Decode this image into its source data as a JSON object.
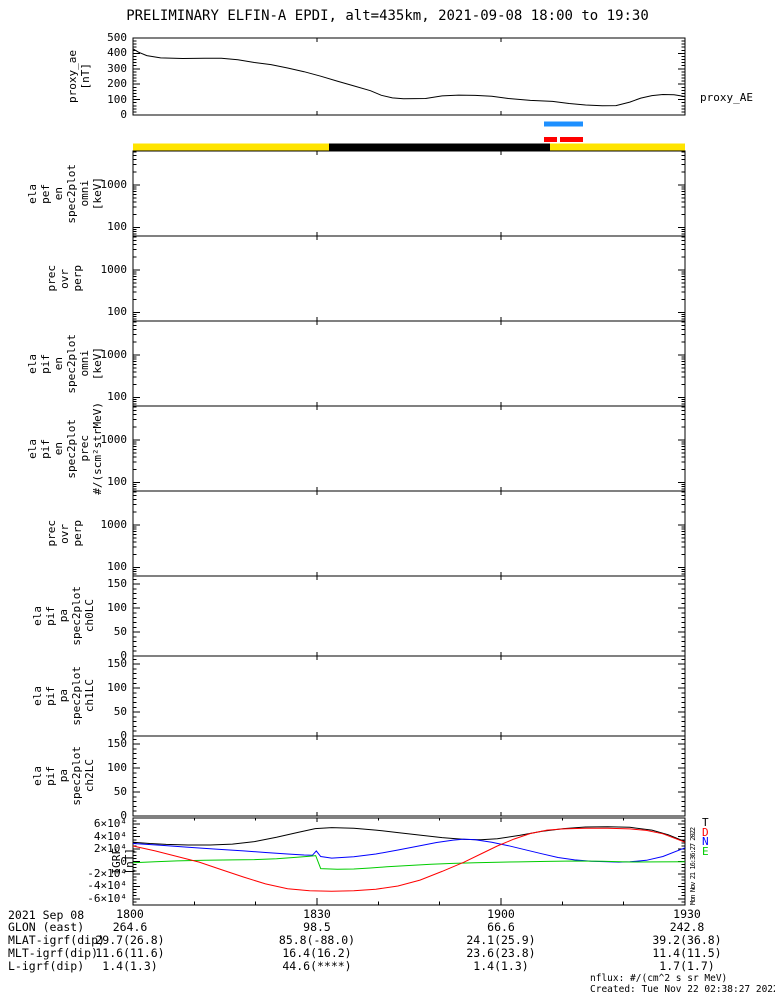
{
  "title": "PRELIMINARY ELFIN-A EPDI, alt=435km, 2021-09-08 18:00 to 19:30",
  "labels": {
    "proxy_ae_right": "proxy_AE",
    "side_timestamp": "Mon Nov 21 16:36:27 2022"
  },
  "footnotes": {
    "nflux": "nflux: #/(cm^2 s sr MeV)",
    "created": "Created: Tue Nov 22 02:38:27 2022"
  },
  "bottom_axis": {
    "date_label": "2021 Sep 08",
    "time_ticks": [
      "1800",
      "1830",
      "1900",
      "1930"
    ],
    "rows": [
      {
        "label": "GLON (east)",
        "values": [
          "264.6",
          "98.5",
          "66.6",
          "242.8"
        ]
      },
      {
        "label": "MLAT-igrf(dip)",
        "values": [
          "29.7(26.8)",
          "85.8(-88.0)",
          "24.1(25.9)",
          "39.2(36.8)"
        ]
      },
      {
        "label": "MLT-igrf(dip)",
        "values": [
          "11.6(11.6)",
          "16.4(16.2)",
          "23.6(23.8)",
          "11.4(11.5)"
        ]
      },
      {
        "label": "L-igrf(dip)",
        "values": [
          "1.4(1.3)",
          "44.6(****)",
          "1.4(1.3)",
          "1.7(1.7)"
        ]
      }
    ]
  },
  "chart_data": [
    {
      "panel": "proxy-ae",
      "type": "line",
      "ylabel_lines": [
        "proxy_ae",
        "[nT]"
      ],
      "yscale": "linear",
      "ylim": [
        0,
        500
      ],
      "yticks": [
        0,
        100,
        200,
        300,
        400,
        500
      ],
      "minor_step": 20,
      "xlim_minutes": [
        0,
        90
      ],
      "series": [
        {
          "name": "proxy_AE",
          "color": "#000000",
          "points": [
            [
              0,
              430
            ],
            [
              0.01,
              408
            ],
            [
              0.025,
              386
            ],
            [
              0.05,
              371
            ],
            [
              0.09,
              367
            ],
            [
              0.13,
              369
            ],
            [
              0.16,
              368
            ],
            [
              0.19,
              359
            ],
            [
              0.22,
              341
            ],
            [
              0.25,
              327
            ],
            [
              0.28,
              305
            ],
            [
              0.31,
              281
            ],
            [
              0.34,
              252
            ],
            [
              0.37,
              220
            ],
            [
              0.4,
              189
            ],
            [
              0.43,
              158
            ],
            [
              0.45,
              128
            ],
            [
              0.47,
              111
            ],
            [
              0.49,
              106
            ],
            [
              0.53,
              107
            ],
            [
              0.56,
              124
            ],
            [
              0.59,
              129
            ],
            [
              0.62,
              127
            ],
            [
              0.65,
              122
            ],
            [
              0.68,
              107
            ],
            [
              0.72,
              95
            ],
            [
              0.76,
              88
            ],
            [
              0.79,
              75
            ],
            [
              0.82,
              65
            ],
            [
              0.85,
              60
            ],
            [
              0.875,
              61
            ],
            [
              0.9,
              84
            ],
            [
              0.92,
              110
            ],
            [
              0.94,
              126
            ],
            [
              0.96,
              133
            ],
            [
              0.98,
              132
            ],
            [
              1,
              120
            ]
          ]
        }
      ]
    },
    {
      "panel": "status-bar",
      "type": "segment-bar",
      "segments": [
        {
          "from": 0,
          "to": 0.355,
          "color": "#ffe400"
        },
        {
          "from": 0.355,
          "to": 0.755,
          "color": "#000000"
        },
        {
          "from": 0.755,
          "to": 1,
          "color": "#ffe400"
        }
      ],
      "overlay_marks": [
        {
          "row": 0,
          "from": 0.7446,
          "to": 0.8152,
          "color": "#1e90ff"
        },
        {
          "row": 1,
          "from": 0.7446,
          "to": 0.7681,
          "color": "#ff0000"
        },
        {
          "row": 1,
          "from": 0.7736,
          "to": 0.8152,
          "color": "#ff0000"
        }
      ]
    },
    {
      "panel": "ela-pef-en-omni",
      "type": "spectrogram",
      "ylabel_lines": [
        "ela",
        "pef",
        "en",
        "spec2plot",
        "omni",
        "[keV]"
      ],
      "yscale": "log",
      "ylim": [
        63,
        6300
      ],
      "yticks": [
        100,
        1000
      ]
    },
    {
      "panel": "prec-ovr-perp-electron",
      "type": "spectrogram",
      "ylabel_lines": [
        "prec",
        "ovr",
        "perp"
      ],
      "yscale": "log",
      "ylim": [
        63,
        6300
      ],
      "yticks": [
        100,
        1000
      ]
    },
    {
      "panel": "ela-pif-en-omni",
      "type": "spectrogram",
      "ylabel_lines": [
        "ela",
        "pif",
        "en",
        "spec2plot",
        "omni",
        "[keV]"
      ],
      "yscale": "log",
      "ylim": [
        63,
        6300
      ],
      "yticks": [
        100,
        1000
      ]
    },
    {
      "panel": "ela-pif-en-prec",
      "type": "spectrogram",
      "ylabel_lines": [
        "ela",
        "pif",
        "en",
        "spec2plot",
        "prec",
        "#/(scm²strMeV)"
      ],
      "yscale": "log",
      "ylim": [
        63,
        6300
      ],
      "yticks": [
        100,
        1000
      ]
    },
    {
      "panel": "prec-ovr-perp-ion",
      "type": "spectrogram",
      "ylabel_lines": [
        "prec",
        "ovr",
        "perp"
      ],
      "yscale": "log",
      "ylim": [
        63,
        6300
      ],
      "yticks": [
        100,
        1000
      ]
    },
    {
      "panel": "ela-pif-pa-ch0lc",
      "type": "line",
      "ylabel_lines": [
        "ela",
        "pif",
        "pa",
        "spec2plot",
        "ch0LC"
      ],
      "yscale": "linear",
      "ylim": [
        0,
        167
      ],
      "yticks": [
        0,
        50,
        100,
        150
      ],
      "minor_step": 10
    },
    {
      "panel": "ela-pif-pa-ch1lc",
      "type": "line",
      "ylabel_lines": [
        "ela",
        "pif",
        "pa",
        "spec2plot",
        "ch1LC"
      ],
      "yscale": "linear",
      "ylim": [
        0,
        167
      ],
      "yticks": [
        0,
        50,
        100,
        150
      ],
      "minor_step": 10
    },
    {
      "panel": "ela-pif-pa-ch2lc",
      "type": "line",
      "ylabel_lines": [
        "ela",
        "pif",
        "pa",
        "spec2plot",
        "ch2LC"
      ],
      "yscale": "linear",
      "ylim": [
        0,
        167
      ],
      "yticks": [
        0,
        50,
        100,
        150
      ],
      "minor_step": 10
    },
    {
      "panel": "igrf",
      "type": "line",
      "ylabel_lines": [
        "IGRF",
        "[nT]"
      ],
      "yscale": "linear",
      "ylim": [
        -70000,
        70000
      ],
      "yticks": [
        60000,
        40000,
        20000,
        0,
        -20000,
        -40000,
        -60000
      ],
      "ytick_labels": [
        "6×10⁴",
        "4×10⁴",
        "2×10⁴",
        "0",
        "-2×10⁴",
        "-4×10⁴",
        "-6×10⁴"
      ],
      "minor_step": 5000,
      "legend": [
        {
          "label": "T",
          "color": "#000000"
        },
        {
          "label": "D",
          "color": "#ff0000"
        },
        {
          "label": "N",
          "color": "#0000ff"
        },
        {
          "label": "E",
          "color": "#00cc00"
        }
      ],
      "series": [
        {
          "name": "T",
          "color": "#000000",
          "points": [
            [
              0,
              31000
            ],
            [
              0.03,
              29000
            ],
            [
              0.06,
              27500
            ],
            [
              0.1,
              26500
            ],
            [
              0.14,
              26500
            ],
            [
              0.18,
              28000
            ],
            [
              0.22,
              32000
            ],
            [
              0.26,
              39000
            ],
            [
              0.3,
              47000
            ],
            [
              0.33,
              53000
            ],
            [
              0.36,
              54500
            ],
            [
              0.4,
              53500
            ],
            [
              0.44,
              50500
            ],
            [
              0.48,
              46500
            ],
            [
              0.52,
              42500
            ],
            [
              0.56,
              38500
            ],
            [
              0.6,
              35500
            ],
            [
              0.63,
              35000
            ],
            [
              0.66,
              36500
            ],
            [
              0.7,
              42000
            ],
            [
              0.74,
              48500
            ],
            [
              0.78,
              53000
            ],
            [
              0.82,
              55500
            ],
            [
              0.86,
              56000
            ],
            [
              0.9,
              55000
            ],
            [
              0.94,
              50500
            ],
            [
              0.97,
              43000
            ],
            [
              1,
              32000
            ]
          ]
        },
        {
          "name": "N",
          "color": "#0000ff",
          "points": [
            [
              0,
              29000
            ],
            [
              0.05,
              26000
            ],
            [
              0.1,
              23000
            ],
            [
              0.15,
              20000
            ],
            [
              0.2,
              17000
            ],
            [
              0.24,
              14500
            ],
            [
              0.28,
              12000
            ],
            [
              0.31,
              10500
            ],
            [
              0.325,
              10000
            ],
            [
              0.332,
              17000
            ],
            [
              0.34,
              8000
            ],
            [
              0.36,
              5500
            ],
            [
              0.4,
              7500
            ],
            [
              0.44,
              12000
            ],
            [
              0.48,
              18500
            ],
            [
              0.52,
              25500
            ],
            [
              0.55,
              30500
            ],
            [
              0.58,
              34500
            ],
            [
              0.6,
              36000
            ],
            [
              0.62,
              35000
            ],
            [
              0.65,
              31000
            ],
            [
              0.68,
              25500
            ],
            [
              0.71,
              19000
            ],
            [
              0.74,
              12500
            ],
            [
              0.77,
              6500
            ],
            [
              0.8,
              2500
            ],
            [
              0.83,
              500
            ],
            [
              0.86,
              -500
            ],
            [
              0.88,
              -1000
            ],
            [
              0.9,
              -500
            ],
            [
              0.93,
              2000
            ],
            [
              0.96,
              8000
            ],
            [
              1,
              22000
            ]
          ]
        },
        {
          "name": "E",
          "color": "#00cc00",
          "points": [
            [
              0,
              -2000
            ],
            [
              0.04,
              -500
            ],
            [
              0.08,
              1000
            ],
            [
              0.13,
              2000
            ],
            [
              0.18,
              2500
            ],
            [
              0.22,
              3000
            ],
            [
              0.26,
              4500
            ],
            [
              0.3,
              7000
            ],
            [
              0.32,
              8500
            ],
            [
              0.331,
              9500
            ],
            [
              0.34,
              -11500
            ],
            [
              0.37,
              -12500
            ],
            [
              0.4,
              -12000
            ],
            [
              0.43,
              -10500
            ],
            [
              0.46,
              -8500
            ],
            [
              0.5,
              -6500
            ],
            [
              0.54,
              -4500
            ],
            [
              0.58,
              -3000
            ],
            [
              0.62,
              -2000
            ],
            [
              0.66,
              -1200
            ],
            [
              0.7,
              -600
            ],
            [
              0.75,
              200
            ],
            [
              0.8,
              800
            ],
            [
              0.85,
              300
            ],
            [
              0.9,
              -800
            ],
            [
              0.95,
              -600
            ],
            [
              1,
              -400
            ]
          ]
        },
        {
          "name": "D",
          "color": "#ff0000",
          "points": [
            [
              0,
              25000
            ],
            [
              0.04,
              17000
            ],
            [
              0.08,
              8000
            ],
            [
              0.12,
              -1000
            ],
            [
              0.16,
              -13000
            ],
            [
              0.2,
              -25000
            ],
            [
              0.24,
              -36000
            ],
            [
              0.28,
              -44000
            ],
            [
              0.32,
              -47000
            ],
            [
              0.36,
              -48000
            ],
            [
              0.4,
              -47000
            ],
            [
              0.44,
              -44500
            ],
            [
              0.48,
              -39500
            ],
            [
              0.52,
              -30000
            ],
            [
              0.56,
              -16000
            ],
            [
              0.6,
              -1000
            ],
            [
              0.63,
              12000
            ],
            [
              0.66,
              25000
            ],
            [
              0.69,
              36000
            ],
            [
              0.72,
              45000
            ],
            [
              0.75,
              50500
            ],
            [
              0.78,
              52500
            ],
            [
              0.82,
              53500
            ],
            [
              0.86,
              53500
            ],
            [
              0.9,
              52500
            ],
            [
              0.93,
              50000
            ],
            [
              0.96,
              44500
            ],
            [
              1,
              31000
            ]
          ]
        }
      ]
    }
  ]
}
